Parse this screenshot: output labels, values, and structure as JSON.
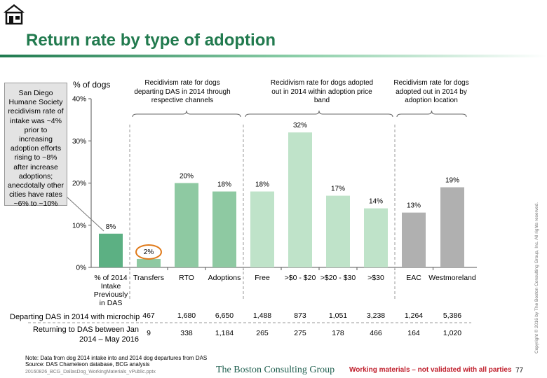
{
  "title": "Return rate by type of adoption",
  "callout": "San Diego Humane Society recidivism rate of intake was ~4% prior to increasing adoption efforts rising to ~8% after increase adoptions; anecdotally other cities have rates ~6% to ~10%",
  "group_titles": [
    "Recidivism rate for dogs departing DAS in 2014 through respective channels",
    "Recidivism rate for dogs adopted out in 2014 within adoption price band",
    "Recidivism rate for dogs adopted out in 2014 by adoption location"
  ],
  "colors": {
    "title": "#217a4e",
    "intake": "#5cb083",
    "channel": "#8ec9a2",
    "price": "#bfe3c9",
    "location": "#b0b0b0",
    "highlight_ring": "#e07a1a"
  },
  "chart_data": {
    "type": "bar",
    "ylabel": "% of dogs",
    "ylim": [
      0,
      40
    ],
    "yticks": [
      "0%",
      "10%",
      "20%",
      "30%",
      "40%"
    ],
    "categories": [
      "% of 2014 Intake Previously in DAS",
      "Transfers",
      "RTO",
      "Adoptions",
      "Free",
      ">$0 - $20",
      ">$20 - $30",
      ">$30",
      "EAC",
      "Westmoreland"
    ],
    "values": [
      8,
      2,
      20,
      18,
      18,
      32,
      17,
      14,
      13,
      19
    ],
    "value_labels": [
      "8%",
      "2%",
      "20%",
      "18%",
      "18%",
      "32%",
      "17%",
      "14%",
      "13%",
      "19%"
    ],
    "groups": [
      "intake",
      "channel",
      "channel",
      "channel",
      "price",
      "price",
      "price",
      "price",
      "location",
      "location"
    ],
    "highlighted": "Transfers"
  },
  "table": {
    "rows": [
      {
        "label": "Departing DAS in 2014 with microchip",
        "values": [
          "467",
          "1,680",
          "6,650",
          "1,488",
          "873",
          "1,051",
          "3,238",
          "1,264",
          "5,386"
        ]
      },
      {
        "label": "Returning to DAS between Jan 2014 – May 2016",
        "values": [
          "9",
          "338",
          "1,184",
          "265",
          "275",
          "178",
          "466",
          "164",
          "1,020"
        ]
      }
    ]
  },
  "footer": {
    "note": "Note: Data from dog 2014 intake into and 2014 dog departures from DAS",
    "source": "Source: DAS Chameleon database, BCG analysis",
    "file": "20160826_BCG_DallasDog_WorkingMaterials_vPublic.pptx",
    "brand": "The Boston Consulting Group",
    "disclaimer": "Working materials – not validated with all parties",
    "page": "77",
    "copyright": "Copyright © 2016 by The Boston Consulting Group, Inc. All rights reserved."
  }
}
